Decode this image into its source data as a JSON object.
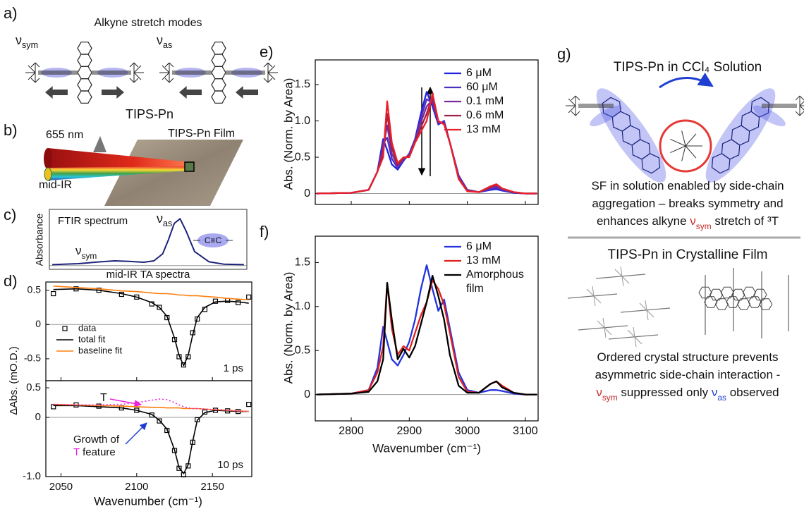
{
  "panels": {
    "a": {
      "label": "a)",
      "title": "Alkyne stretch modes",
      "nu_sym": [
        {
          "text": "ν",
          "sub": "sym"
        }
      ],
      "nu_as": [
        {
          "text": "ν",
          "sub": "as"
        }
      ],
      "molecule": "TIPS-Pn"
    },
    "b": {
      "label": "b)",
      "pump": "655 nm",
      "sample": "TIPS-Pn Film",
      "probe": "mid-IR"
    },
    "g": {
      "label": "g)",
      "solution_title": "TIPS-Pn in CCl₄ Solution",
      "solution_text": [
        [
          {
            "text": "SF in solution enabled by side-chain"
          }
        ],
        [
          {
            "text": "aggregation – breaks symmetry and"
          }
        ],
        [
          {
            "text": "enhances alkyne "
          },
          {
            "text": "ν",
            "sub": "sym",
            "color": "#c62828"
          },
          {
            "text": " stretch of ³T"
          }
        ]
      ],
      "film_title": "TIPS-Pn in Crystalline Film",
      "film_text": [
        [
          {
            "text": "Ordered crystal structure prevents"
          }
        ],
        [
          {
            "text": "asymmetric side-chain interaction -"
          }
        ],
        [
          {
            "text": "ν",
            "sub": "sym",
            "color": "#c62828"
          },
          {
            "text": " suppressed only "
          },
          {
            "text": "ν",
            "sub": "as",
            "color": "#1e3fd0"
          },
          {
            "text": " observed"
          }
        ]
      ]
    }
  },
  "chart_data": [
    {
      "type": "line",
      "panel": "c)",
      "title": "FTIR spectrum",
      "ylabel": "Absorbance",
      "x": [
        2042,
        2060,
        2075,
        2085,
        2095,
        2105,
        2112,
        2118,
        2122,
        2126,
        2130,
        2134,
        2140,
        2150,
        2160,
        2174
      ],
      "series": [
        {
          "color": "#1c237a",
          "values": [
            0.02,
            0.04,
            0.08,
            0.1,
            0.09,
            0.07,
            0.1,
            0.25,
            0.55,
            0.9,
            1.0,
            0.75,
            0.3,
            0.08,
            0.03,
            0.02
          ]
        }
      ],
      "xlim": [
        2040,
        2176
      ],
      "ylim": [
        -0.08,
        1.2
      ],
      "peak_label": [
        {
          "text": "ν",
          "sub": "as"
        }
      ],
      "shoulder_label": [
        {
          "text": "ν",
          "sub": "sym"
        }
      ],
      "bond_label": "C≡C"
    },
    {
      "type": "line",
      "panel": "d)",
      "title": "mid-IR TA spectra",
      "ylabel": "ΔAbs. (mO.D.)",
      "x": [
        2045,
        2060,
        2075,
        2090,
        2100,
        2110,
        2115,
        2120,
        2125,
        2128,
        2131,
        2134,
        2137,
        2140,
        2145,
        2152,
        2160,
        2167,
        2174
      ],
      "series": [
        {
          "name": "data",
          "color": "#000000",
          "marker": "square",
          "values": [
            0.45,
            0.52,
            0.5,
            0.44,
            0.4,
            0.3,
            0.25,
            0.1,
            -0.22,
            -0.47,
            -0.59,
            -0.47,
            -0.12,
            0.08,
            0.22,
            0.34,
            0.35,
            0.32,
            0.4
          ]
        },
        {
          "name": "total fit",
          "color": "#000000",
          "values": [
            0.51,
            0.52,
            0.5,
            0.45,
            0.4,
            0.32,
            0.25,
            0.12,
            -0.2,
            -0.45,
            -0.6,
            -0.45,
            -0.15,
            0.1,
            0.25,
            0.33,
            0.34,
            0.33,
            0.31
          ]
        },
        {
          "name": "baseline fit",
          "color": "#ff7f0e",
          "values": [
            0.56,
            0.54,
            0.52,
            0.49,
            0.48,
            0.46,
            0.45,
            0.45,
            0.44,
            0.43,
            0.43,
            0.42,
            0.42,
            0.42,
            0.41,
            0.4,
            0.38,
            0.37,
            0.36
          ]
        }
      ],
      "xlim": [
        2040,
        2176
      ],
      "ylim": [
        -0.82,
        0.62
      ],
      "yticks": [
        0.5,
        0,
        -0.5
      ],
      "delay": "1 ps"
    },
    {
      "type": "line",
      "x": [
        2045,
        2060,
        2075,
        2090,
        2100,
        2110,
        2115,
        2120,
        2125,
        2128,
        2131,
        2134,
        2137,
        2140,
        2145,
        2152,
        2160,
        2167,
        2174
      ],
      "series": [
        {
          "color": "#000000",
          "marker": "square",
          "values": [
            0.18,
            0.21,
            0.19,
            0.16,
            0.12,
            0.04,
            -0.06,
            -0.22,
            -0.56,
            -0.86,
            -0.97,
            -0.82,
            -0.42,
            -0.04,
            0.09,
            0.12,
            0.11,
            0.1,
            0.22
          ]
        },
        {
          "color": "#000000",
          "values": [
            0.2,
            0.2,
            0.18,
            0.16,
            0.12,
            0.05,
            -0.05,
            -0.2,
            -0.55,
            -0.85,
            -0.95,
            -0.8,
            -0.4,
            -0.05,
            0.08,
            0.12,
            0.11,
            0.1,
            0.1
          ]
        },
        {
          "color": "#ff7f0e",
          "values": [
            0.22,
            0.21,
            0.2,
            0.19,
            0.18,
            0.17,
            0.17,
            0.16,
            0.16,
            0.16,
            0.15,
            0.15,
            0.15,
            0.15,
            0.14,
            0.13,
            0.12,
            0.11,
            0.1
          ]
        },
        {
          "color": "#ee22dd",
          "dash": "dotted",
          "values": [
            0.22,
            0.21,
            0.21,
            0.22,
            0.25,
            0.29,
            0.31,
            0.3,
            0.25,
            0.21,
            0.18,
            0.16,
            0.15,
            0.15,
            0.14,
            0.13,
            0.12,
            0.11,
            0.1
          ]
        }
      ],
      "xlim": [
        2040,
        2176
      ],
      "ylim": [
        -1.0,
        0.62
      ],
      "xticks": [
        2050,
        2100,
        2150
      ],
      "yticks": [
        0.5,
        0,
        {
          "value": -1,
          "label": "-1.0"
        }
      ],
      "xlabel": "Wavenumber (cm⁻¹)",
      "delay": "10 ps",
      "feature_label": "T",
      "growth_label": [
        [
          {
            "text": "Growth of"
          }
        ],
        [
          {
            "text": "T",
            "color": "#ee22dd"
          },
          {
            "text": " feature"
          }
        ]
      ]
    },
    {
      "type": "line",
      "panel": "e)",
      "ylabel": "Abs. (Norm. by Area)",
      "x": [
        2740,
        2800,
        2830,
        2845,
        2855,
        2862,
        2870,
        2880,
        2890,
        2900,
        2910,
        2920,
        2930,
        2940,
        2950,
        2960,
        2970,
        2985,
        3000,
        3020,
        3040,
        3050,
        3060,
        3080,
        3100,
        3120
      ],
      "series": [
        {
          "name": "6 μM",
          "color": "#2222dd",
          "values": [
            0,
            0.01,
            0.05,
            0.3,
            0.75,
            0.6,
            0.4,
            0.33,
            0.45,
            0.55,
            0.75,
            1.1,
            1.4,
            1.2,
            0.95,
            1.0,
            0.7,
            0.25,
            0.05,
            0.02,
            0.05,
            0.06,
            0.04,
            0.01,
            0,
            0
          ]
        },
        {
          "name": "60 μM",
          "color": "#4b2fc0",
          "values": [
            0,
            0.01,
            0.05,
            0.3,
            0.69,
            0.77,
            0.48,
            0.35,
            0.46,
            0.54,
            0.74,
            1.04,
            1.3,
            1.25,
            0.96,
            0.99,
            0.7,
            0.24,
            0.05,
            0.02,
            0.06,
            0.08,
            0.05,
            0.01,
            0,
            0
          ]
        },
        {
          "name": "0.1 mM",
          "color": "#7b2a9a",
          "values": [
            0,
            0.01,
            0.05,
            0.3,
            0.63,
            0.94,
            0.55,
            0.38,
            0.48,
            0.53,
            0.73,
            0.98,
            1.2,
            1.29,
            0.98,
            0.98,
            0.7,
            0.23,
            0.04,
            0.02,
            0.08,
            0.1,
            0.06,
            0.02,
            0,
            0
          ]
        },
        {
          "name": "0.6 mM",
          "color": "#a0204a",
          "values": [
            0,
            0.01,
            0.05,
            0.3,
            0.56,
            1.1,
            0.63,
            0.4,
            0.49,
            0.51,
            0.71,
            0.91,
            1.1,
            1.34,
            0.99,
            0.96,
            0.7,
            0.21,
            0.04,
            0.02,
            0.09,
            0.12,
            0.07,
            0.02,
            0,
            0
          ]
        },
        {
          "name": "13 mM",
          "color": "#e8202a",
          "values": [
            0,
            0.01,
            0.05,
            0.3,
            0.5,
            1.27,
            0.7,
            0.42,
            0.5,
            0.5,
            0.7,
            0.85,
            1.0,
            1.38,
            1.0,
            0.95,
            0.7,
            0.2,
            0.03,
            0.02,
            0.1,
            0.13,
            0.07,
            0.02,
            0,
            0
          ]
        }
      ],
      "xlim": [
        2738,
        3122
      ],
      "ylim": [
        -0.15,
        1.84
      ],
      "yticks": [
        0,
        0.5,
        {
          "value": 1,
          "label": "1.0"
        },
        1.5
      ]
    },
    {
      "type": "line",
      "panel": "f)",
      "ylabel": "Abs. (Norm. by Area)",
      "x": [
        2740,
        2800,
        2830,
        2845,
        2855,
        2862,
        2870,
        2880,
        2890,
        2900,
        2910,
        2920,
        2930,
        2940,
        2950,
        2960,
        2970,
        2985,
        3000,
        3020,
        3040,
        3050,
        3060,
        3080,
        3100,
        3120
      ],
      "series": [
        {
          "name": "6 μM",
          "color": "#2233dd",
          "values": [
            0,
            0.01,
            0.05,
            0.3,
            0.77,
            0.6,
            0.4,
            0.33,
            0.45,
            0.6,
            0.85,
            1.2,
            1.47,
            1.2,
            0.95,
            1.08,
            0.75,
            0.25,
            0.05,
            0.02,
            0.05,
            0.05,
            0.04,
            0.01,
            0,
            0
          ]
        },
        {
          "name": "13 mM",
          "color": "#e02020",
          "values": [
            0,
            0.01,
            0.05,
            0.25,
            0.55,
            1.27,
            0.75,
            0.45,
            0.55,
            0.5,
            0.7,
            0.9,
            1.05,
            1.3,
            1.2,
            1.02,
            0.7,
            0.2,
            0.03,
            0.02,
            0.12,
            0.15,
            0.1,
            0.02,
            0,
            0
          ]
        },
        {
          "name": "Amorphous film",
          "color": "#000000",
          "values": [
            0,
            0.01,
            0.03,
            0.15,
            0.4,
            1.27,
            0.85,
            0.4,
            0.52,
            0.42,
            0.55,
            0.8,
            1.05,
            1.35,
            1.12,
            0.85,
            0.45,
            0.1,
            0.02,
            0.02,
            0.12,
            0.15,
            0.08,
            0.02,
            0,
            0
          ]
        }
      ],
      "xlim": [
        2738,
        3122
      ],
      "ylim": [
        -0.3,
        1.8
      ],
      "xticks": [
        2800,
        2900,
        3000,
        3100
      ],
      "yticks": [
        0,
        0.5,
        {
          "value": 1,
          "label": "1.0"
        },
        1.5
      ],
      "xlabel": "Wavenumber (cm⁻¹)"
    }
  ]
}
